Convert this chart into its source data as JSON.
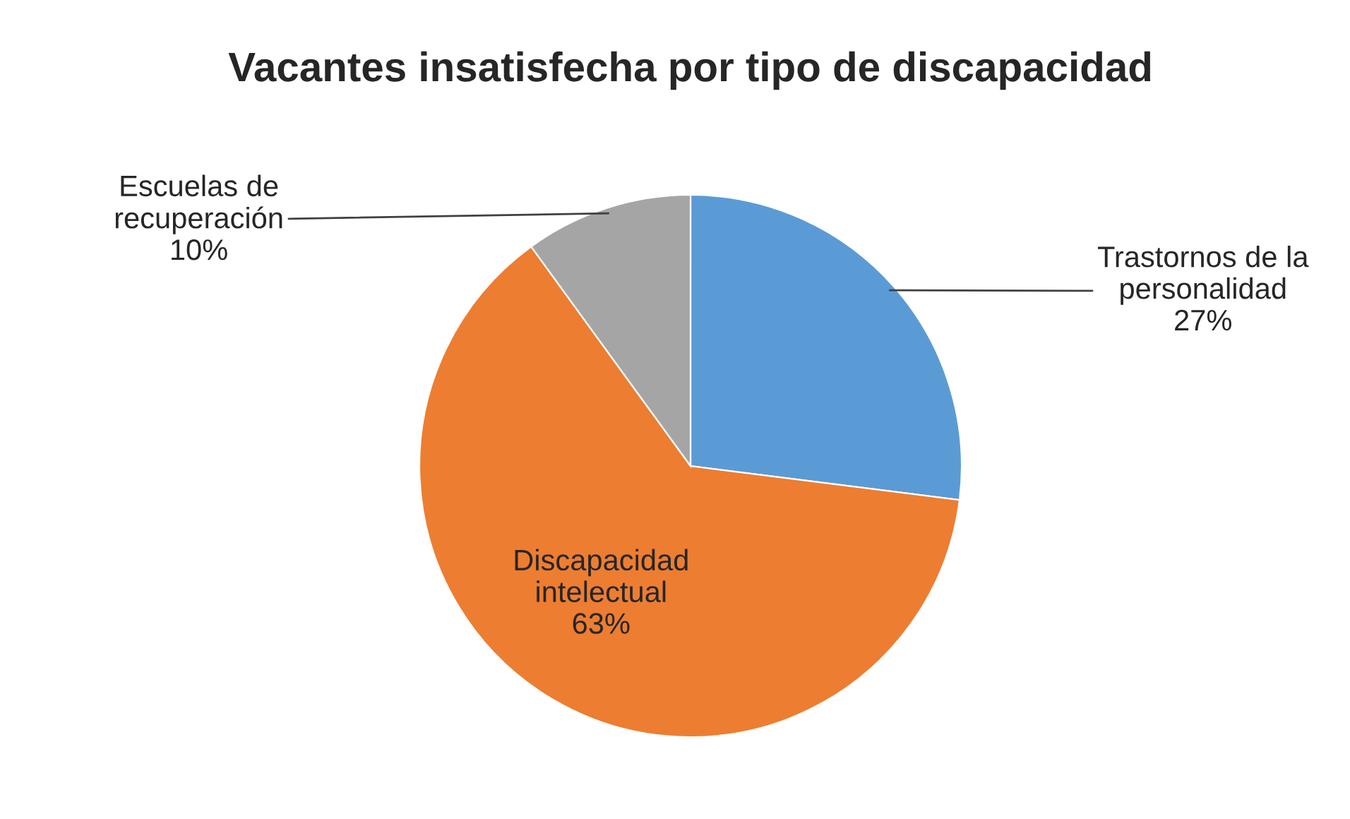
{
  "chart_data": {
    "type": "pie",
    "title": "Vacantes insatisfecha por tipo de discapacidad",
    "categories": [
      "Trastornos de la personalidad",
      "Discapacidad intelectual",
      "Escuelas de recuperación"
    ],
    "values": [
      27,
      63,
      10
    ],
    "value_labels": [
      "27%",
      "63%",
      "10%"
    ],
    "colors": [
      "#5b9bd5",
      "#ed7d31",
      "#a5a5a5"
    ],
    "legend": false
  }
}
